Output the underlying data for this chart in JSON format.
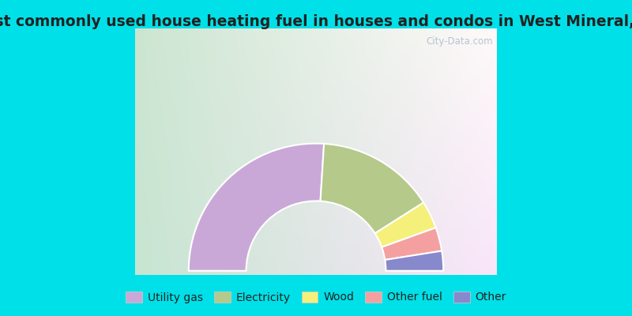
{
  "title": "Most commonly used house heating fuel in houses and condos in West Mineral, KS",
  "segments": [
    {
      "label": "Utility gas",
      "value": 52,
      "color": "#c9a8d8"
    },
    {
      "label": "Electricity",
      "value": 30,
      "color": "#b5c98a"
    },
    {
      "label": "Wood",
      "value": 7,
      "color": "#f5f07a"
    },
    {
      "label": "Other fuel",
      "value": 6,
      "color": "#f5a0a0"
    },
    {
      "label": "Other",
      "value": 5,
      "color": "#8888cc"
    }
  ],
  "outer_border_color": "#00e0e8",
  "chart_bg_colors": [
    "#c8e8c8",
    "#e8f0e8",
    "#f5f5ff"
  ],
  "title_color": "#222222",
  "title_fontsize": 13.5,
  "legend_fontsize": 10,
  "watermark": "City-Data.com",
  "outer_r": 1.55,
  "inner_r": 0.85
}
